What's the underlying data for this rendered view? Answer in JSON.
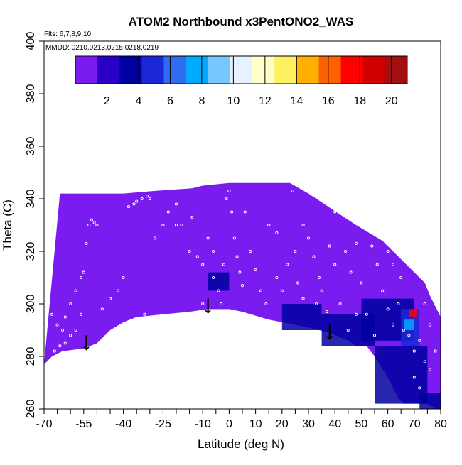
{
  "chart_data": {
    "type": "heatmap",
    "title": "ATOM2 Northbound x3PentONO2_WAS",
    "annotations": {
      "flights": "Flts: 6,7,8,9,10",
      "dates": "MMDD: 0210,0213,0215,0218,0219"
    },
    "xlabel": "Latitude (deg N)",
    "ylabel": "Theta (C)",
    "xlim": [
      -70,
      80
    ],
    "ylim": [
      260,
      400
    ],
    "x_ticks": [
      -70,
      -55,
      -40,
      -25,
      -10,
      0,
      10,
      20,
      30,
      40,
      50,
      60,
      70,
      80
    ],
    "x_minor_ticks": [
      -65,
      -60,
      -50,
      -45,
      -35,
      -30,
      -20,
      -15,
      -5,
      5,
      15,
      25,
      35,
      45,
      55,
      65,
      75
    ],
    "y_ticks": [
      260,
      280,
      300,
      320,
      340,
      360,
      380,
      400
    ],
    "colorbar": {
      "range": [
        0,
        21
      ],
      "ticks": [
        2,
        4,
        6,
        8,
        10,
        12,
        14,
        16,
        18,
        20
      ],
      "colors": [
        "#7a1cf0",
        "#2a00c8",
        "#0000a0",
        "#1a28d8",
        "#2f6cf0",
        "#00aaff",
        "#78c8ff",
        "#e6f2ff",
        "#ffffc8",
        "#fff060",
        "#ffb000",
        "#ff6000",
        "#ff0000",
        "#d00000",
        "#a01010"
      ]
    },
    "background_value": 1,
    "domain_top": [
      [
        -64,
        342
      ],
      [
        -40,
        342
      ],
      [
        -28,
        343
      ],
      [
        -14,
        344
      ],
      [
        -10,
        345
      ],
      [
        0,
        346
      ],
      [
        10,
        346
      ],
      [
        23,
        346
      ],
      [
        30,
        342
      ],
      [
        36,
        338
      ],
      [
        42,
        334
      ],
      [
        48,
        330
      ],
      [
        53,
        327
      ],
      [
        58,
        324
      ],
      [
        62,
        320
      ],
      [
        66,
        316
      ],
      [
        70,
        312
      ],
      [
        74,
        308
      ],
      [
        76,
        303
      ],
      [
        78,
        299
      ],
      [
        80,
        295
      ],
      [
        81,
        290
      ]
    ],
    "domain_bottom": [
      [
        -70,
        277
      ],
      [
        -67,
        280
      ],
      [
        -63,
        282
      ],
      [
        -55,
        283
      ],
      [
        -50,
        285
      ],
      [
        -45,
        290
      ],
      [
        -40,
        293
      ],
      [
        -35,
        295
      ],
      [
        -25,
        296
      ],
      [
        -15,
        297
      ],
      [
        -8,
        298
      ],
      [
        0,
        298
      ],
      [
        5,
        297
      ],
      [
        15,
        294
      ],
      [
        20,
        293
      ],
      [
        30,
        291
      ],
      [
        38,
        289
      ],
      [
        45,
        286
      ],
      [
        48,
        284
      ],
      [
        52,
        284
      ],
      [
        55,
        280
      ],
      [
        60,
        272
      ],
      [
        64,
        264
      ],
      [
        66,
        262
      ],
      [
        75,
        262
      ],
      [
        78,
        260
      ],
      [
        81,
        260
      ]
    ],
    "enhanced_regions": [
      {
        "x": [
          -8,
          0
        ],
        "y": [
          305,
          312
        ],
        "value": 3
      },
      {
        "x": [
          20,
          35
        ],
        "y": [
          290,
          300
        ],
        "value": 3
      },
      {
        "x": [
          35,
          55
        ],
        "y": [
          284,
          296
        ],
        "value": 3.5
      },
      {
        "x": [
          50,
          70
        ],
        "y": [
          286,
          302
        ],
        "value": 4
      },
      {
        "x": [
          55,
          75
        ],
        "y": [
          262,
          284
        ],
        "value": 3.5
      },
      {
        "x": [
          65,
          72
        ],
        "y": [
          284,
          298
        ],
        "value": 5
      },
      {
        "x": [
          66,
          70
        ],
        "y": [
          290,
          294
        ],
        "value": 8
      },
      {
        "x": [
          68,
          71
        ],
        "y": [
          295,
          298
        ],
        "value": 17
      },
      {
        "x": [
          72,
          80
        ],
        "y": [
          260,
          266
        ],
        "value": 4
      }
    ],
    "arrows": [
      {
        "latitude": -54,
        "theta": 288
      },
      {
        "latitude": -8,
        "theta": 302
      },
      {
        "latitude": 38,
        "theta": 292
      }
    ],
    "sample_points": [
      [
        -60,
        288
      ],
      [
        -62,
        285
      ],
      [
        -58,
        290
      ],
      [
        -62,
        295
      ],
      [
        -63,
        290
      ],
      [
        -64,
        284
      ],
      [
        -66,
        282
      ],
      [
        -67,
        296
      ],
      [
        -65,
        292
      ],
      [
        -60,
        300
      ],
      [
        -58,
        305
      ],
      [
        -56,
        310
      ],
      [
        -55,
        312
      ],
      [
        -53,
        330
      ],
      [
        -52,
        332
      ],
      [
        -51,
        331
      ],
      [
        -50,
        330
      ],
      [
        -54,
        323
      ],
      [
        -45,
        302
      ],
      [
        -42,
        305
      ],
      [
        -40,
        310
      ],
      [
        -38,
        337
      ],
      [
        -36,
        338
      ],
      [
        -35,
        339
      ],
      [
        -33,
        340
      ],
      [
        -31,
        341
      ],
      [
        -30,
        340
      ],
      [
        -28,
        325
      ],
      [
        -25,
        330
      ],
      [
        -23,
        335
      ],
      [
        -20,
        338
      ],
      [
        -18,
        330
      ],
      [
        -15,
        320
      ],
      [
        -12,
        318
      ],
      [
        -10,
        315
      ],
      [
        -8,
        325
      ],
      [
        -6,
        320
      ],
      [
        -6,
        310
      ],
      [
        -4,
        305
      ],
      [
        -3,
        300
      ],
      [
        -2,
        315
      ],
      [
        -1,
        340
      ],
      [
        0,
        343
      ],
      [
        1,
        335
      ],
      [
        2,
        325
      ],
      [
        3,
        318
      ],
      [
        4,
        312
      ],
      [
        5,
        307
      ],
      [
        6,
        335
      ],
      [
        8,
        320
      ],
      [
        10,
        313
      ],
      [
        12,
        305
      ],
      [
        14,
        300
      ],
      [
        15,
        330
      ],
      [
        18,
        310
      ],
      [
        20,
        305
      ],
      [
        22,
        315
      ],
      [
        24,
        343
      ],
      [
        25,
        320
      ],
      [
        26,
        308
      ],
      [
        28,
        302
      ],
      [
        30,
        325
      ],
      [
        32,
        318
      ],
      [
        34,
        310
      ],
      [
        35,
        305
      ],
      [
        37,
        297
      ],
      [
        38,
        322
      ],
      [
        40,
        315
      ],
      [
        42,
        300
      ],
      [
        44,
        320
      ],
      [
        46,
        312
      ],
      [
        48,
        323
      ],
      [
        50,
        308
      ],
      [
        52,
        296
      ],
      [
        54,
        322
      ],
      [
        56,
        315
      ],
      [
        58,
        305
      ],
      [
        60,
        298
      ],
      [
        62,
        292
      ],
      [
        64,
        300
      ],
      [
        66,
        290
      ],
      [
        68,
        288
      ],
      [
        70,
        282
      ],
      [
        72,
        286
      ],
      [
        74,
        278
      ],
      [
        76,
        275
      ],
      [
        78,
        282
      ],
      [
        76,
        292
      ],
      [
        74,
        300
      ],
      [
        70,
        272
      ],
      [
        72,
        268
      ],
      [
        60,
        320
      ],
      [
        62,
        315
      ],
      [
        65,
        310
      ],
      [
        48,
        296
      ],
      [
        45,
        290
      ],
      [
        55,
        288
      ],
      [
        -10,
        300
      ],
      [
        -32,
        296
      ],
      [
        -20,
        330
      ],
      [
        -14,
        333
      ],
      [
        28,
        330
      ],
      [
        40,
        335
      ],
      [
        33,
        300
      ],
      [
        18,
        327
      ],
      [
        -56,
        296
      ],
      [
        -48,
        298
      ]
    ]
  }
}
